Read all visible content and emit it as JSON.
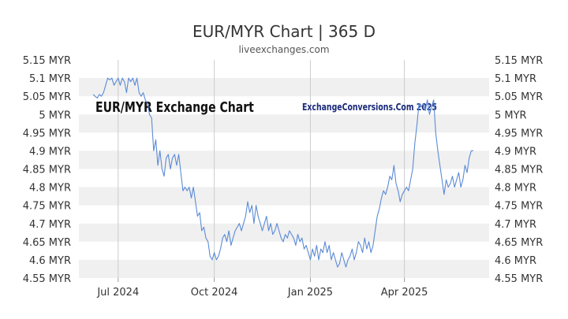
{
  "chart_data": {
    "type": "line",
    "title": "EUR/MYR Chart | 365 D",
    "subtitle": "liveexchanges.com",
    "watermark_left": "EUR/MYR Exchange Chart",
    "watermark_right": "ExchangeConversions.Com 2025",
    "ylim": [
      4.55,
      5.15
    ],
    "y_ticks": [
      5.15,
      5.1,
      5.05,
      5.0,
      4.95,
      4.9,
      4.85,
      4.8,
      4.75,
      4.7,
      4.65,
      4.6,
      4.55
    ],
    "y_tick_labels": [
      "5.15 MYR",
      "5.1 MYR",
      "5.05 MYR",
      "5 MYR",
      "4.95 MYR",
      "4.9 MYR",
      "4.85 MYR",
      "4.8 MYR",
      "4.75 MYR",
      "4.7 MYR",
      "4.65 MYR",
      "4.6 MYR",
      "4.55 MYR"
    ],
    "x_ticks": [
      {
        "label": "Jul 2024",
        "date": "2024-07-01"
      },
      {
        "label": "Oct 2024",
        "date": "2024-10-01"
      },
      {
        "label": "Jan 2025",
        "date": "2025-01-01"
      },
      {
        "label": "Apr 2025",
        "date": "2025-04-01"
      }
    ],
    "xlim": [
      "2024-06-07",
      "2025-06-06"
    ],
    "grid": true,
    "colors": {
      "line": "#5b8bd6",
      "band": "#f0f0f0",
      "grid": "#cccccc"
    },
    "series": [
      {
        "values": [
          [
            "2024-06-07",
            5.055
          ],
          [
            "2024-06-09",
            5.05
          ],
          [
            "2024-06-11",
            5.045
          ],
          [
            "2024-06-13",
            5.055
          ],
          [
            "2024-06-15",
            5.05
          ],
          [
            "2024-06-17",
            5.06
          ],
          [
            "2024-06-19",
            5.08
          ],
          [
            "2024-06-21",
            5.1
          ],
          [
            "2024-06-23",
            5.095
          ],
          [
            "2024-06-25",
            5.1
          ],
          [
            "2024-06-27",
            5.08
          ],
          [
            "2024-06-29",
            5.09
          ],
          [
            "2024-07-01",
            5.1
          ],
          [
            "2024-07-03",
            5.08
          ],
          [
            "2024-07-05",
            5.1
          ],
          [
            "2024-07-07",
            5.09
          ],
          [
            "2024-07-09",
            5.06
          ],
          [
            "2024-07-11",
            5.1
          ],
          [
            "2024-07-13",
            5.09
          ],
          [
            "2024-07-15",
            5.1
          ],
          [
            "2024-07-17",
            5.08
          ],
          [
            "2024-07-19",
            5.1
          ],
          [
            "2024-07-21",
            5.06
          ],
          [
            "2024-07-23",
            5.05
          ],
          [
            "2024-07-25",
            5.06
          ],
          [
            "2024-07-27",
            5.04
          ],
          [
            "2024-07-29",
            5.03
          ],
          [
            "2024-07-31",
            5.0
          ],
          [
            "2024-08-02",
            4.99
          ],
          [
            "2024-08-04",
            4.9
          ],
          [
            "2024-08-06",
            4.93
          ],
          [
            "2024-08-08",
            4.86
          ],
          [
            "2024-08-10",
            4.9
          ],
          [
            "2024-08-12",
            4.85
          ],
          [
            "2024-08-14",
            4.83
          ],
          [
            "2024-08-16",
            4.88
          ],
          [
            "2024-08-18",
            4.89
          ],
          [
            "2024-08-20",
            4.85
          ],
          [
            "2024-08-22",
            4.88
          ],
          [
            "2024-08-24",
            4.89
          ],
          [
            "2024-08-26",
            4.86
          ],
          [
            "2024-08-28",
            4.89
          ],
          [
            "2024-08-30",
            4.84
          ],
          [
            "2024-09-01",
            4.79
          ],
          [
            "2024-09-03",
            4.8
          ],
          [
            "2024-09-05",
            4.79
          ],
          [
            "2024-09-07",
            4.8
          ],
          [
            "2024-09-09",
            4.77
          ],
          [
            "2024-09-11",
            4.8
          ],
          [
            "2024-09-13",
            4.76
          ],
          [
            "2024-09-15",
            4.72
          ],
          [
            "2024-09-17",
            4.73
          ],
          [
            "2024-09-19",
            4.68
          ],
          [
            "2024-09-21",
            4.69
          ],
          [
            "2024-09-23",
            4.66
          ],
          [
            "2024-09-25",
            4.65
          ],
          [
            "2024-09-27",
            4.61
          ],
          [
            "2024-09-29",
            4.6
          ],
          [
            "2024-10-01",
            4.62
          ],
          [
            "2024-10-03",
            4.6
          ],
          [
            "2024-10-05",
            4.61
          ],
          [
            "2024-10-07",
            4.63
          ],
          [
            "2024-10-09",
            4.66
          ],
          [
            "2024-10-11",
            4.67
          ],
          [
            "2024-10-13",
            4.65
          ],
          [
            "2024-10-15",
            4.68
          ],
          [
            "2024-10-17",
            4.64
          ],
          [
            "2024-10-19",
            4.66
          ],
          [
            "2024-10-21",
            4.68
          ],
          [
            "2024-10-23",
            4.69
          ],
          [
            "2024-10-25",
            4.7
          ],
          [
            "2024-10-27",
            4.68
          ],
          [
            "2024-10-29",
            4.7
          ],
          [
            "2024-10-31",
            4.72
          ],
          [
            "2024-11-02",
            4.76
          ],
          [
            "2024-11-04",
            4.73
          ],
          [
            "2024-11-06",
            4.75
          ],
          [
            "2024-11-08",
            4.7
          ],
          [
            "2024-11-10",
            4.75
          ],
          [
            "2024-11-12",
            4.72
          ],
          [
            "2024-11-14",
            4.7
          ],
          [
            "2024-11-16",
            4.68
          ],
          [
            "2024-11-18",
            4.7
          ],
          [
            "2024-11-20",
            4.72
          ],
          [
            "2024-11-22",
            4.68
          ],
          [
            "2024-11-24",
            4.7
          ],
          [
            "2024-11-26",
            4.67
          ],
          [
            "2024-11-28",
            4.68
          ],
          [
            "2024-11-30",
            4.7
          ],
          [
            "2024-12-02",
            4.68
          ],
          [
            "2024-12-04",
            4.66
          ],
          [
            "2024-12-06",
            4.65
          ],
          [
            "2024-12-08",
            4.67
          ],
          [
            "2024-12-10",
            4.66
          ],
          [
            "2024-12-12",
            4.68
          ],
          [
            "2024-12-14",
            4.67
          ],
          [
            "2024-12-16",
            4.66
          ],
          [
            "2024-12-18",
            4.64
          ],
          [
            "2024-12-20",
            4.67
          ],
          [
            "2024-12-22",
            4.65
          ],
          [
            "2024-12-24",
            4.66
          ],
          [
            "2024-12-26",
            4.63
          ],
          [
            "2024-12-28",
            4.64
          ],
          [
            "2024-12-30",
            4.62
          ],
          [
            "2025-01-01",
            4.6
          ],
          [
            "2025-01-03",
            4.63
          ],
          [
            "2025-01-05",
            4.61
          ],
          [
            "2025-01-07",
            4.64
          ],
          [
            "2025-01-09",
            4.6
          ],
          [
            "2025-01-11",
            4.63
          ],
          [
            "2025-01-13",
            4.62
          ],
          [
            "2025-01-15",
            4.65
          ],
          [
            "2025-01-17",
            4.62
          ],
          [
            "2025-01-19",
            4.64
          ],
          [
            "2025-01-21",
            4.6
          ],
          [
            "2025-01-23",
            4.62
          ],
          [
            "2025-01-25",
            4.6
          ],
          [
            "2025-01-27",
            4.58
          ],
          [
            "2025-01-29",
            4.59
          ],
          [
            "2025-01-31",
            4.62
          ],
          [
            "2025-02-02",
            4.6
          ],
          [
            "2025-02-04",
            4.58
          ],
          [
            "2025-02-06",
            4.6
          ],
          [
            "2025-02-08",
            4.61
          ],
          [
            "2025-02-10",
            4.63
          ],
          [
            "2025-02-12",
            4.6
          ],
          [
            "2025-02-14",
            4.62
          ],
          [
            "2025-02-16",
            4.65
          ],
          [
            "2025-02-18",
            4.64
          ],
          [
            "2025-02-20",
            4.62
          ],
          [
            "2025-02-22",
            4.66
          ],
          [
            "2025-02-24",
            4.63
          ],
          [
            "2025-02-26",
            4.65
          ],
          [
            "2025-02-28",
            4.62
          ],
          [
            "2025-03-02",
            4.64
          ],
          [
            "2025-03-04",
            4.68
          ],
          [
            "2025-03-06",
            4.72
          ],
          [
            "2025-03-08",
            4.74
          ],
          [
            "2025-03-10",
            4.77
          ],
          [
            "2025-03-12",
            4.79
          ],
          [
            "2025-03-14",
            4.78
          ],
          [
            "2025-03-16",
            4.8
          ],
          [
            "2025-03-18",
            4.83
          ],
          [
            "2025-03-20",
            4.82
          ],
          [
            "2025-03-22",
            4.86
          ],
          [
            "2025-03-24",
            4.81
          ],
          [
            "2025-03-26",
            4.79
          ],
          [
            "2025-03-28",
            4.76
          ],
          [
            "2025-03-30",
            4.78
          ],
          [
            "2025-04-01",
            4.79
          ],
          [
            "2025-04-03",
            4.8
          ],
          [
            "2025-04-05",
            4.79
          ],
          [
            "2025-04-07",
            4.82
          ],
          [
            "2025-04-09",
            4.85
          ],
          [
            "2025-04-11",
            4.92
          ],
          [
            "2025-04-13",
            4.97
          ],
          [
            "2025-04-15",
            5.03
          ],
          [
            "2025-04-17",
            5.02
          ],
          [
            "2025-04-19",
            5.03
          ],
          [
            "2025-04-21",
            5.01
          ],
          [
            "2025-04-23",
            5.04
          ],
          [
            "2025-04-25",
            5.0
          ],
          [
            "2025-04-27",
            5.02
          ],
          [
            "2025-04-29",
            5.04
          ],
          [
            "2025-05-01",
            4.95
          ],
          [
            "2025-05-03",
            4.9
          ],
          [
            "2025-05-05",
            4.86
          ],
          [
            "2025-05-07",
            4.82
          ],
          [
            "2025-05-09",
            4.78
          ],
          [
            "2025-05-11",
            4.82
          ],
          [
            "2025-05-13",
            4.8
          ],
          [
            "2025-05-15",
            4.81
          ],
          [
            "2025-05-17",
            4.83
          ],
          [
            "2025-05-19",
            4.8
          ],
          [
            "2025-05-21",
            4.82
          ],
          [
            "2025-05-23",
            4.84
          ],
          [
            "2025-05-25",
            4.8
          ],
          [
            "2025-05-27",
            4.82
          ],
          [
            "2025-05-29",
            4.86
          ],
          [
            "2025-05-31",
            4.84
          ],
          [
            "2025-06-02",
            4.88
          ],
          [
            "2025-06-04",
            4.9
          ],
          [
            "2025-06-06",
            4.9
          ]
        ]
      }
    ]
  }
}
